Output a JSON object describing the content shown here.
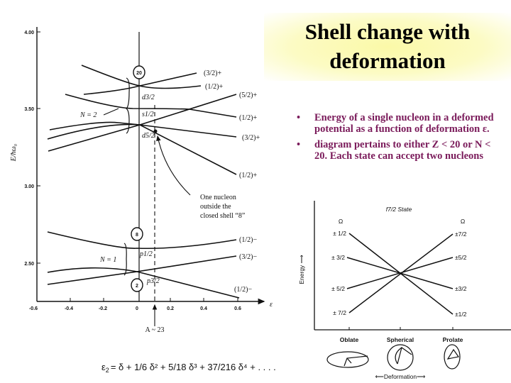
{
  "title": {
    "line1": "Shell change with",
    "line2": "deformation"
  },
  "bullets": [
    {
      "marker": "•",
      "text": "Energy of a single nucleon in a deformed potential as a function of deformation ε."
    },
    {
      "marker": "•",
      "text": "diagram pertains to either Z < 20 or N < 20. Each state can accept two nucleons"
    }
  ],
  "left_diagram": {
    "y_label": "E/ħω₀",
    "x_label": "ε",
    "y_ticks": [
      "4.00",
      "3.50",
      "3.00",
      "2.50"
    ],
    "x_ticks": [
      "-0.6",
      "-0.4",
      "-0.2",
      "0",
      "0.2",
      "0.4",
      "0.6"
    ],
    "magic_numbers": [
      "20",
      "8",
      "2"
    ],
    "shells": [
      "N = 2",
      "N = 1"
    ],
    "orbitals": {
      "d32": "d3/2",
      "s12": "s1/2",
      "d52": "d5/2",
      "p12": "p1/2",
      "p32": "p3/2"
    },
    "level_labels": [
      "(3/2)+",
      "(1/2)+",
      "(5/2)+",
      "(1/2)+",
      "(3/2)+",
      "(1/2)+",
      "(1/2)−",
      "(3/2)−",
      "(1/2)−"
    ],
    "annotation": [
      "One nucleon",
      "outside the",
      "closed shell “8”"
    ],
    "marker_label": "A ~ 23"
  },
  "formula": {
    "lhs": "ε",
    "sub": "2",
    "text": "= δ + 1/6 δ² + 5/18 δ³ + 37/216 δ⁴ + . . . ."
  },
  "right_diagram": {
    "title": "f7/2 State",
    "y_label": "Energy",
    "omega": "Ω",
    "left_labels": [
      "± 1/2",
      "± 3/2",
      "± 5/2",
      "± 7/2"
    ],
    "right_labels": [
      "±7/2",
      "±5/2",
      "±3/2",
      "±1/2"
    ],
    "x_categories": [
      "Oblate",
      "Spherical",
      "Prolate"
    ],
    "x_label": "Deformation"
  }
}
